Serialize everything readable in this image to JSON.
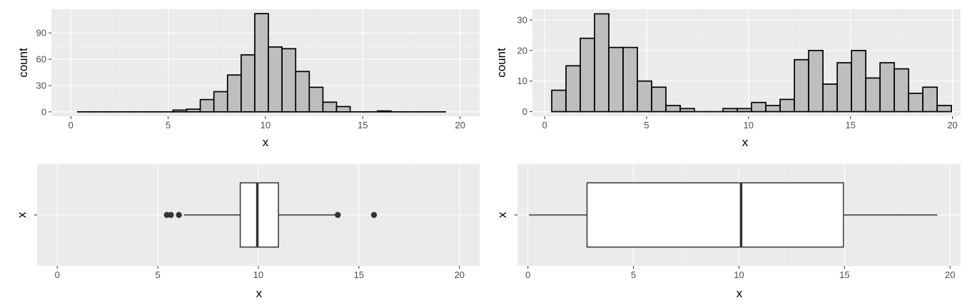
{
  "colors": {
    "panel_bg": "#EBEBEB",
    "grid_major": "#FFFFFF",
    "bar_fill": "#BEBEBE",
    "outline": "#000000",
    "box_line": "#333333",
    "outlier": "#333333",
    "tick_text": "#4D4D4D"
  },
  "chart_data": [
    {
      "type": "bar",
      "subtype": "histogram",
      "xlabel": "x",
      "ylabel": "count",
      "xlim": [
        -1,
        21
      ],
      "ylim": [
        -5,
        117
      ],
      "x_ticks": [
        0,
        5,
        10,
        15,
        20
      ],
      "y_ticks": [
        0,
        30,
        60,
        90
      ],
      "x_tick_labels": [
        "0",
        "5",
        "10",
        "15",
        "20"
      ],
      "y_tick_labels": [
        "0",
        "30",
        "60",
        "90"
      ],
      "bin_width": 0.7,
      "x": [
        0.7,
        1.4,
        2.1,
        2.8,
        3.5,
        4.2,
        4.9,
        5.6,
        6.3,
        7.0,
        7.7,
        8.4,
        9.1,
        9.8,
        10.5,
        11.2,
        11.9,
        12.6,
        13.3,
        14.0,
        14.7,
        15.4,
        16.1,
        16.8,
        17.5,
        18.2,
        18.9
      ],
      "values": [
        0,
        0,
        0,
        0,
        0,
        0,
        0,
        2,
        3,
        14,
        23,
        42,
        65,
        112,
        74,
        72,
        46,
        28,
        11,
        6,
        0,
        0,
        1,
        0,
        0,
        0,
        0
      ],
      "grid": true
    },
    {
      "type": "bar",
      "subtype": "histogram",
      "xlabel": "x",
      "ylabel": "count",
      "xlim": [
        -0.6,
        20.4
      ],
      "ylim": [
        -1.5,
        33.5
      ],
      "x_ticks": [
        0,
        5,
        10,
        15,
        20
      ],
      "y_ticks": [
        0,
        10,
        20,
        30
      ],
      "x_tick_labels": [
        "0",
        "5",
        "10",
        "15",
        "20"
      ],
      "y_tick_labels": [
        "0",
        "10",
        "20",
        "30"
      ],
      "bin_width": 0.7,
      "x": [
        0.7,
        1.4,
        2.1,
        2.8,
        3.5,
        4.2,
        4.9,
        5.6,
        6.3,
        7.0,
        7.7,
        8.4,
        9.1,
        9.8,
        10.5,
        11.2,
        11.9,
        12.6,
        13.3,
        14.0,
        14.7,
        15.4,
        16.1,
        16.8,
        17.5,
        18.2,
        18.9,
        19.6
      ],
      "values": [
        7,
        15,
        24,
        32,
        21,
        21,
        10,
        8,
        2,
        1,
        0,
        0,
        1,
        1,
        3,
        2,
        4,
        17,
        20,
        9,
        16,
        20,
        11,
        16,
        14,
        6,
        8,
        2
      ],
      "grid": true
    },
    {
      "type": "boxplot",
      "orientation": "horizontal",
      "xlabel": "x",
      "ylabel": "",
      "y_tick_labels": [
        "x"
      ],
      "xlim": [
        -1,
        21
      ],
      "x_ticks": [
        0,
        5,
        10,
        15,
        20
      ],
      "x_tick_labels": [
        "0",
        "5",
        "10",
        "15",
        "20"
      ],
      "q1": 9.1,
      "median": 9.95,
      "q3": 11.0,
      "whisker_low": 6.3,
      "whisker_high": 13.9,
      "outliers": [
        5.45,
        5.65,
        6.05,
        13.95,
        15.75
      ],
      "grid": true
    },
    {
      "type": "boxplot",
      "orientation": "horizontal",
      "xlabel": "x",
      "ylabel": "",
      "y_tick_labels": [
        "x"
      ],
      "xlim": [
        -0.5,
        20.5
      ],
      "x_ticks": [
        0,
        5,
        10,
        15,
        20
      ],
      "x_tick_labels": [
        "0",
        "5",
        "10",
        "15",
        "20"
      ],
      "q1": 2.8,
      "median": 10.1,
      "q3": 14.95,
      "whisker_low": 0.05,
      "whisker_high": 19.4,
      "outliers": [],
      "grid": true
    }
  ]
}
